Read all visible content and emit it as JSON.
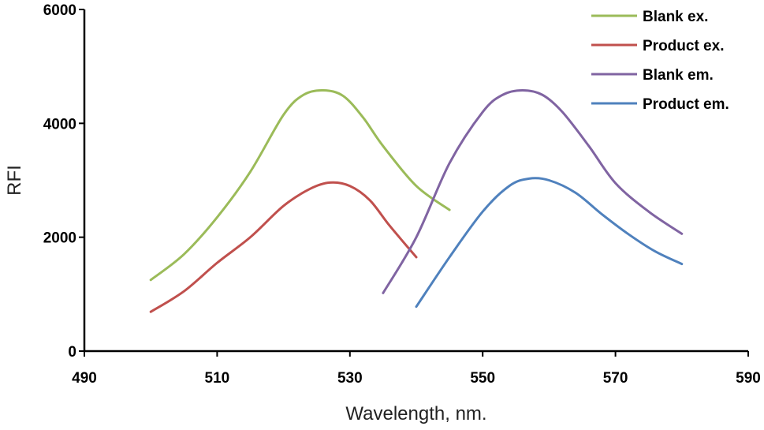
{
  "chart_data": {
    "type": "line",
    "title": "",
    "xlabel": "Wavelength, nm.",
    "ylabel": "RFI",
    "xlim": [
      490,
      590
    ],
    "ylim": [
      0,
      6000
    ],
    "xticks": [
      490,
      510,
      530,
      550,
      570,
      590
    ],
    "yticks": [
      0,
      2000,
      4000,
      6000
    ],
    "grid": false,
    "legend_position": "top-right",
    "series": [
      {
        "name": "Blank ex.",
        "color": "#9BBB59",
        "x": [
          500,
          505,
          510,
          515,
          520,
          523,
          526,
          529,
          532,
          535,
          540,
          545
        ],
        "y": [
          1250,
          1700,
          2350,
          3150,
          4150,
          4500,
          4580,
          4480,
          4100,
          3600,
          2900,
          2480
        ]
      },
      {
        "name": "Product ex.",
        "color": "#C0504D",
        "x": [
          500,
          505,
          510,
          515,
          520,
          524,
          527,
          530,
          533,
          536,
          540
        ],
        "y": [
          690,
          1050,
          1550,
          2000,
          2550,
          2850,
          2960,
          2900,
          2650,
          2200,
          1650
        ]
      },
      {
        "name": "Blank em.",
        "color": "#8064A2",
        "x": [
          535,
          540,
          545,
          550,
          553,
          556,
          559,
          562,
          566,
          570,
          575,
          580
        ],
        "y": [
          1020,
          2000,
          3300,
          4200,
          4500,
          4580,
          4500,
          4200,
          3600,
          2950,
          2450,
          2060
        ]
      },
      {
        "name": "Product em.",
        "color": "#4F81BD",
        "x": [
          540,
          545,
          550,
          554,
          557,
          560,
          564,
          568,
          572,
          576,
          580
        ],
        "y": [
          780,
          1650,
          2450,
          2900,
          3030,
          3000,
          2780,
          2400,
          2050,
          1750,
          1530
        ]
      }
    ]
  }
}
